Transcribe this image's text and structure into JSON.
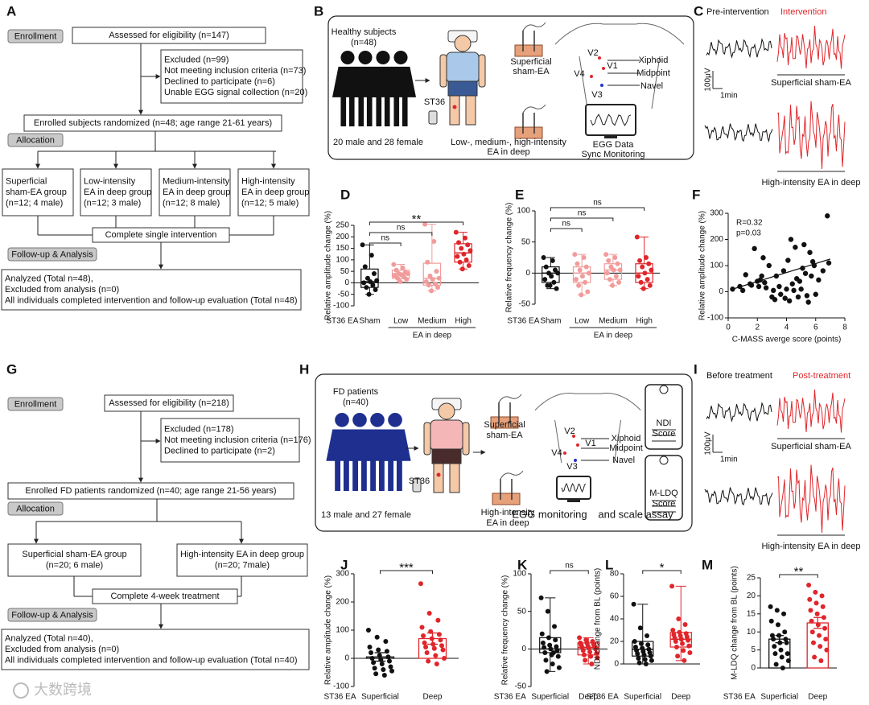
{
  "panel_labels": [
    "A",
    "B",
    "C",
    "D",
    "E",
    "F",
    "G",
    "H",
    "I",
    "J",
    "K",
    "L",
    "M"
  ],
  "flow_a": {
    "enrollment": "Enrollment",
    "assessed": "Assessed for eligibility (n=147)",
    "excluded": [
      "Excluded (n=99)",
      "Not meeting inclusion criteria (n=73)",
      "Declined to participate (n=6)",
      "Unable EGG signal collection (n=20)"
    ],
    "randomized": "Enrolled subjects randomized (n=48; age range 21-61 years)",
    "allocation": "Allocation",
    "groups": [
      [
        "Superficial",
        "sham-EA group",
        "(n=12; 4 male)"
      ],
      [
        "Low-intensity",
        "EA in deep group",
        "(n=12; 3 male)"
      ],
      [
        "Medium-intensity",
        "EA in deep group",
        "(n=12; 8 male)"
      ],
      [
        "High-intensity",
        "EA in deep group",
        "(n=12; 5 male)"
      ]
    ],
    "complete": "Complete single intervention",
    "followup": "Follow-up & Analysis",
    "analyzed": [
      "Analyzed (Total n=48),",
      "Excluded from analysis (n=0)",
      "All individuals completed intervention and follow-up evaluation (Total n=48)"
    ]
  },
  "flow_g": {
    "enrollment": "Enrollment",
    "assessed": "Assessed for eligibility (n=218)",
    "excluded": [
      "Excluded (n=178)",
      "Not meeting inclusion criteria (n=176)",
      "Declined to participate (n=2)"
    ],
    "randomized": "Enrolled FD patients randomized (n=40; age range 21-56 years)",
    "allocation": "Allocation",
    "groups": [
      [
        "Superficial sham-EA group",
        "(n=20; 6 male)"
      ],
      [
        "High-intensity EA in deep group",
        "(n=20; 7male)"
      ]
    ],
    "complete": "Complete 4-week treatment",
    "followup": "Follow-up & Analysis",
    "analyzed": [
      "Analyzed (Total n=40),",
      "Excluded from analysis (n=0)",
      "All individuals completed intervention and follow-up evaluation (Total n=40)"
    ]
  },
  "panel_b": {
    "subjects": "Healthy subjects",
    "n": "(n=48)",
    "sex": "20 male and 28 female",
    "st36": "ST36",
    "sham": [
      "Superficial",
      "sham-EA"
    ],
    "deep": [
      "Low-, medium-, high-intensity",
      "EA in deep"
    ],
    "leads": [
      "V2",
      "V1",
      "V4",
      "V3"
    ],
    "landmarks": [
      "Xiphoid",
      "Midpoint",
      "Navel"
    ],
    "egg": [
      "EGG Data",
      "Sync Monitoring"
    ]
  },
  "panel_h": {
    "subjects": "FD patients",
    "n": "(n=40)",
    "sex": "13 male and 27 female",
    "st36": "ST36",
    "sham": [
      "Superficial",
      "sham-EA"
    ],
    "deep": [
      "High-intensity",
      "EA in deep"
    ],
    "leads": [
      "V2",
      "V1",
      "V4",
      "V3"
    ],
    "landmarks": [
      "Xiphoid",
      "Midpoint",
      "Navel"
    ],
    "egg": "EGG monitoring",
    "assay": "and scale assay",
    "scales": [
      [
        "NDI",
        "Score"
      ],
      [
        "M-LDQ",
        "Score"
      ]
    ]
  },
  "panel_c": {
    "before": "Pre-intervention",
    "after": "Intervention",
    "sham": "Superficial sham-EA",
    "high": "High-intensity EA in deep",
    "scale_y": "100μV",
    "scale_x": "1min"
  },
  "panel_i": {
    "before": "Before treatment",
    "after": "Post-treatment",
    "sham": "Superficial sham-EA",
    "high": "High-intensity EA in deep",
    "scale_y": "100μV",
    "scale_x": "1min"
  },
  "watermark": "大数跨境",
  "chart_data": [
    {
      "type": "box",
      "ylabel": "Relative amplitude change (%)",
      "xlabel": "ST36 EA",
      "group_label": "EA in deep",
      "categories": [
        "Sham",
        "Low",
        "Medium",
        "High"
      ],
      "ylim": [
        -100,
        250
      ],
      "yticks": [
        -100,
        -50,
        0,
        50,
        100,
        150,
        200,
        250
      ],
      "boxes": [
        {
          "color": "#111111",
          "min": -50,
          "q1": -20,
          "median": 5,
          "q3": 60,
          "max": 165,
          "points": [
            165,
            120,
            70,
            40,
            20,
            10,
            5,
            0,
            -10,
            -20,
            -30,
            -50
          ]
        },
        {
          "color": "#f29b9b",
          "min": 5,
          "q1": 20,
          "median": 40,
          "q3": 55,
          "max": 80,
          "points": [
            80,
            65,
            55,
            45,
            40,
            40,
            35,
            30,
            25,
            20,
            15,
            5
          ]
        },
        {
          "color": "#f29b9b",
          "min": -35,
          "q1": -10,
          "median": 20,
          "q3": 85,
          "max": 255,
          "points": [
            255,
            180,
            90,
            50,
            30,
            20,
            15,
            5,
            -5,
            -10,
            -20,
            -35
          ]
        },
        {
          "color": "#e0262b",
          "min": 60,
          "q1": 90,
          "median": 130,
          "q3": 170,
          "max": 220,
          "points": [
            220,
            195,
            175,
            165,
            150,
            140,
            125,
            115,
            100,
            90,
            75,
            60
          ]
        }
      ],
      "comparisons": [
        {
          "label": "**",
          "groups": [
            "Sham",
            "High"
          ]
        },
        {
          "label": "ns",
          "groups": [
            "Sham",
            "Medium"
          ]
        },
        {
          "label": "ns",
          "groups": [
            "Sham",
            "Low"
          ]
        }
      ]
    },
    {
      "type": "box",
      "ylabel": "Relative frequency change (%)",
      "xlabel": "ST36 EA",
      "group_label": "EA in deep",
      "categories": [
        "Sham",
        "Low",
        "Medium",
        "High"
      ],
      "ylim": [
        -50,
        100
      ],
      "yticks": [
        -50,
        0,
        50,
        100
      ],
      "boxes": [
        {
          "color": "#111111",
          "min": -25,
          "q1": -15,
          "median": 0,
          "q3": 10,
          "max": 25,
          "points": [
            25,
            20,
            10,
            5,
            0,
            0,
            -5,
            -10,
            -15,
            -20,
            -25,
            -20
          ]
        },
        {
          "color": "#f29b9b",
          "min": -35,
          "q1": -15,
          "median": 0,
          "q3": 10,
          "max": 30,
          "points": [
            30,
            25,
            15,
            10,
            5,
            0,
            -5,
            -10,
            -15,
            -20,
            -30,
            -35
          ]
        },
        {
          "color": "#f29b9b",
          "min": -20,
          "q1": -10,
          "median": 5,
          "q3": 15,
          "max": 30,
          "points": [
            30,
            25,
            20,
            15,
            10,
            5,
            5,
            0,
            -5,
            -10,
            -15,
            -20
          ]
        },
        {
          "color": "#e0262b",
          "min": -25,
          "q1": -15,
          "median": 0,
          "q3": 15,
          "max": 58,
          "points": [
            58,
            25,
            20,
            15,
            10,
            5,
            0,
            -5,
            -10,
            -15,
            -20,
            -25
          ]
        }
      ],
      "comparisons": [
        {
          "label": "ns",
          "groups": [
            "Sham",
            "High"
          ]
        },
        {
          "label": "ns",
          "groups": [
            "Sham",
            "Medium"
          ]
        },
        {
          "label": "ns",
          "groups": [
            "Sham",
            "Low"
          ]
        }
      ]
    },
    {
      "type": "scatter",
      "ylabel": "Relative amplitude change (%)",
      "xlabel": "C-MASS averge score (points)",
      "xlim": [
        0,
        8
      ],
      "xticks": [
        0,
        2,
        4,
        6,
        8
      ],
      "ylim": [
        -100,
        300
      ],
      "yticks": [
        -100,
        0,
        100,
        200,
        300
      ],
      "annotations": [
        "R=0.32",
        "p=0.03"
      ],
      "color": "#111111",
      "x": [
        0.3,
        0.8,
        1.0,
        1.2,
        1.5,
        1.6,
        1.8,
        2.0,
        2.1,
        2.2,
        2.3,
        2.5,
        2.6,
        2.8,
        3.0,
        3.1,
        3.2,
        3.3,
        3.5,
        3.6,
        3.8,
        3.9,
        4.0,
        4.1,
        4.2,
        4.3,
        4.4,
        4.5,
        4.6,
        4.7,
        4.8,
        4.9,
        5.0,
        5.1,
        5.2,
        5.3,
        5.4,
        5.5,
        5.6,
        5.7,
        5.8,
        5.9,
        6.0,
        6.2,
        6.5,
        6.8,
        6.9,
        2.4
      ],
      "y": [
        10,
        20,
        5,
        65,
        30,
        25,
        165,
        40,
        20,
        45,
        60,
        35,
        15,
        100,
        -20,
        5,
        -30,
        60,
        20,
        -10,
        80,
        -25,
        10,
        120,
        -35,
        200,
        30,
        5,
        170,
        50,
        -20,
        40,
        10,
        90,
        180,
        70,
        -15,
        -40,
        150,
        60,
        115,
        100,
        -10,
        45,
        80,
        290,
        110,
        130
      ],
      "fit": {
        "x": [
          0.3,
          7
        ],
        "y": [
          10,
          125
        ]
      }
    },
    {
      "type": "bar",
      "ylabel": "Relative amplitude change (%)",
      "xlabel": "ST36 EA",
      "categories": [
        "Superficial",
        "Deep"
      ],
      "ylim": [
        -100,
        300
      ],
      "yticks": [
        -100,
        0,
        100,
        200,
        300
      ],
      "values": [
        5,
        70
      ],
      "errors": [
        15,
        20
      ],
      "colors": [
        "#111111",
        "#e0262b"
      ],
      "points": [
        [
          100,
          75,
          60,
          40,
          30,
          25,
          20,
          10,
          5,
          0,
          -5,
          -10,
          -15,
          -20,
          -30,
          -35,
          -40,
          -45,
          -55,
          -60
        ],
        [
          265,
          160,
          135,
          110,
          95,
          85,
          80,
          70,
          65,
          55,
          50,
          45,
          40,
          35,
          30,
          20,
          10,
          0,
          -10,
          -20
        ]
      ],
      "comparisons": [
        {
          "label": "***",
          "groups": [
            "Superficial",
            "Deep"
          ]
        }
      ]
    },
    {
      "type": "box",
      "ylabel": "Relative frequency change (%)",
      "xlabel": "ST36 EA",
      "categories": [
        "Superficial",
        "Deep"
      ],
      "ylim": [
        -50,
        100
      ],
      "yticks": [
        -50,
        0,
        50,
        100
      ],
      "boxes": [
        {
          "color": "#111111",
          "min": -30,
          "q1": -5,
          "median": 0,
          "q3": 15,
          "max": 68,
          "points": [
            68,
            50,
            30,
            20,
            15,
            12,
            8,
            5,
            3,
            2,
            0,
            -2,
            -5,
            -8,
            -10,
            -15,
            -20,
            -25,
            -30,
            -5
          ]
        },
        {
          "color": "#e0262b",
          "min": -20,
          "q1": -8,
          "median": 2,
          "q3": 8,
          "max": 15,
          "points": [
            15,
            12,
            10,
            8,
            8,
            6,
            5,
            4,
            3,
            2,
            1,
            0,
            -2,
            -4,
            -6,
            -8,
            -10,
            -12,
            -15,
            -20
          ]
        }
      ],
      "comparisons": [
        {
          "label": "ns",
          "groups": [
            "Superficial",
            "Deep"
          ]
        }
      ]
    },
    {
      "type": "box",
      "ylabel": "NDI change from BL (points)",
      "xlabel": "ST36 EA",
      "categories": [
        "Superficial",
        "Deep"
      ],
      "ylim": [
        0,
        80
      ],
      "yticks": [
        0,
        20,
        40,
        60,
        80
      ],
      "boxes": [
        {
          "color": "#111111",
          "min": 0,
          "q1": 7,
          "median": 13,
          "q3": 20,
          "max": 53,
          "points": [
            53,
            32,
            25,
            20,
            18,
            17,
            15,
            14,
            13,
            12,
            11,
            10,
            9,
            8,
            7,
            5,
            4,
            3,
            1,
            0
          ]
        },
        {
          "color": "#e0262b",
          "min": 3,
          "q1": 15,
          "median": 22,
          "q3": 28,
          "max": 69,
          "points": [
            69,
            40,
            35,
            30,
            28,
            27,
            26,
            25,
            24,
            23,
            22,
            21,
            20,
            18,
            16,
            15,
            12,
            10,
            7,
            3
          ]
        }
      ],
      "comparisons": [
        {
          "label": "*",
          "groups": [
            "Superficial",
            "Deep"
          ]
        }
      ]
    },
    {
      "type": "bar",
      "ylabel": "M-LDQ change from BL (points)",
      "xlabel": "ST36 EA",
      "categories": [
        "Superficial",
        "Deep"
      ],
      "ylim": [
        0,
        25
      ],
      "yticks": [
        0,
        5,
        10,
        15,
        20,
        25
      ],
      "values": [
        8,
        12.5
      ],
      "errors": [
        1,
        1.5
      ],
      "colors": [
        "#111111",
        "#e0262b"
      ],
      "points": [
        [
          17,
          16,
          15,
          13,
          12,
          10,
          9,
          9,
          8,
          8,
          7,
          7,
          6,
          5,
          4,
          4,
          3,
          2,
          1,
          0
        ],
        [
          23,
          21,
          20,
          19,
          18,
          17,
          16,
          15,
          14,
          13,
          12,
          11,
          10,
          9,
          8,
          7,
          6,
          5,
          3,
          2
        ]
      ],
      "comparisons": [
        {
          "label": "**",
          "groups": [
            "Superficial",
            "Deep"
          ]
        }
      ]
    }
  ]
}
